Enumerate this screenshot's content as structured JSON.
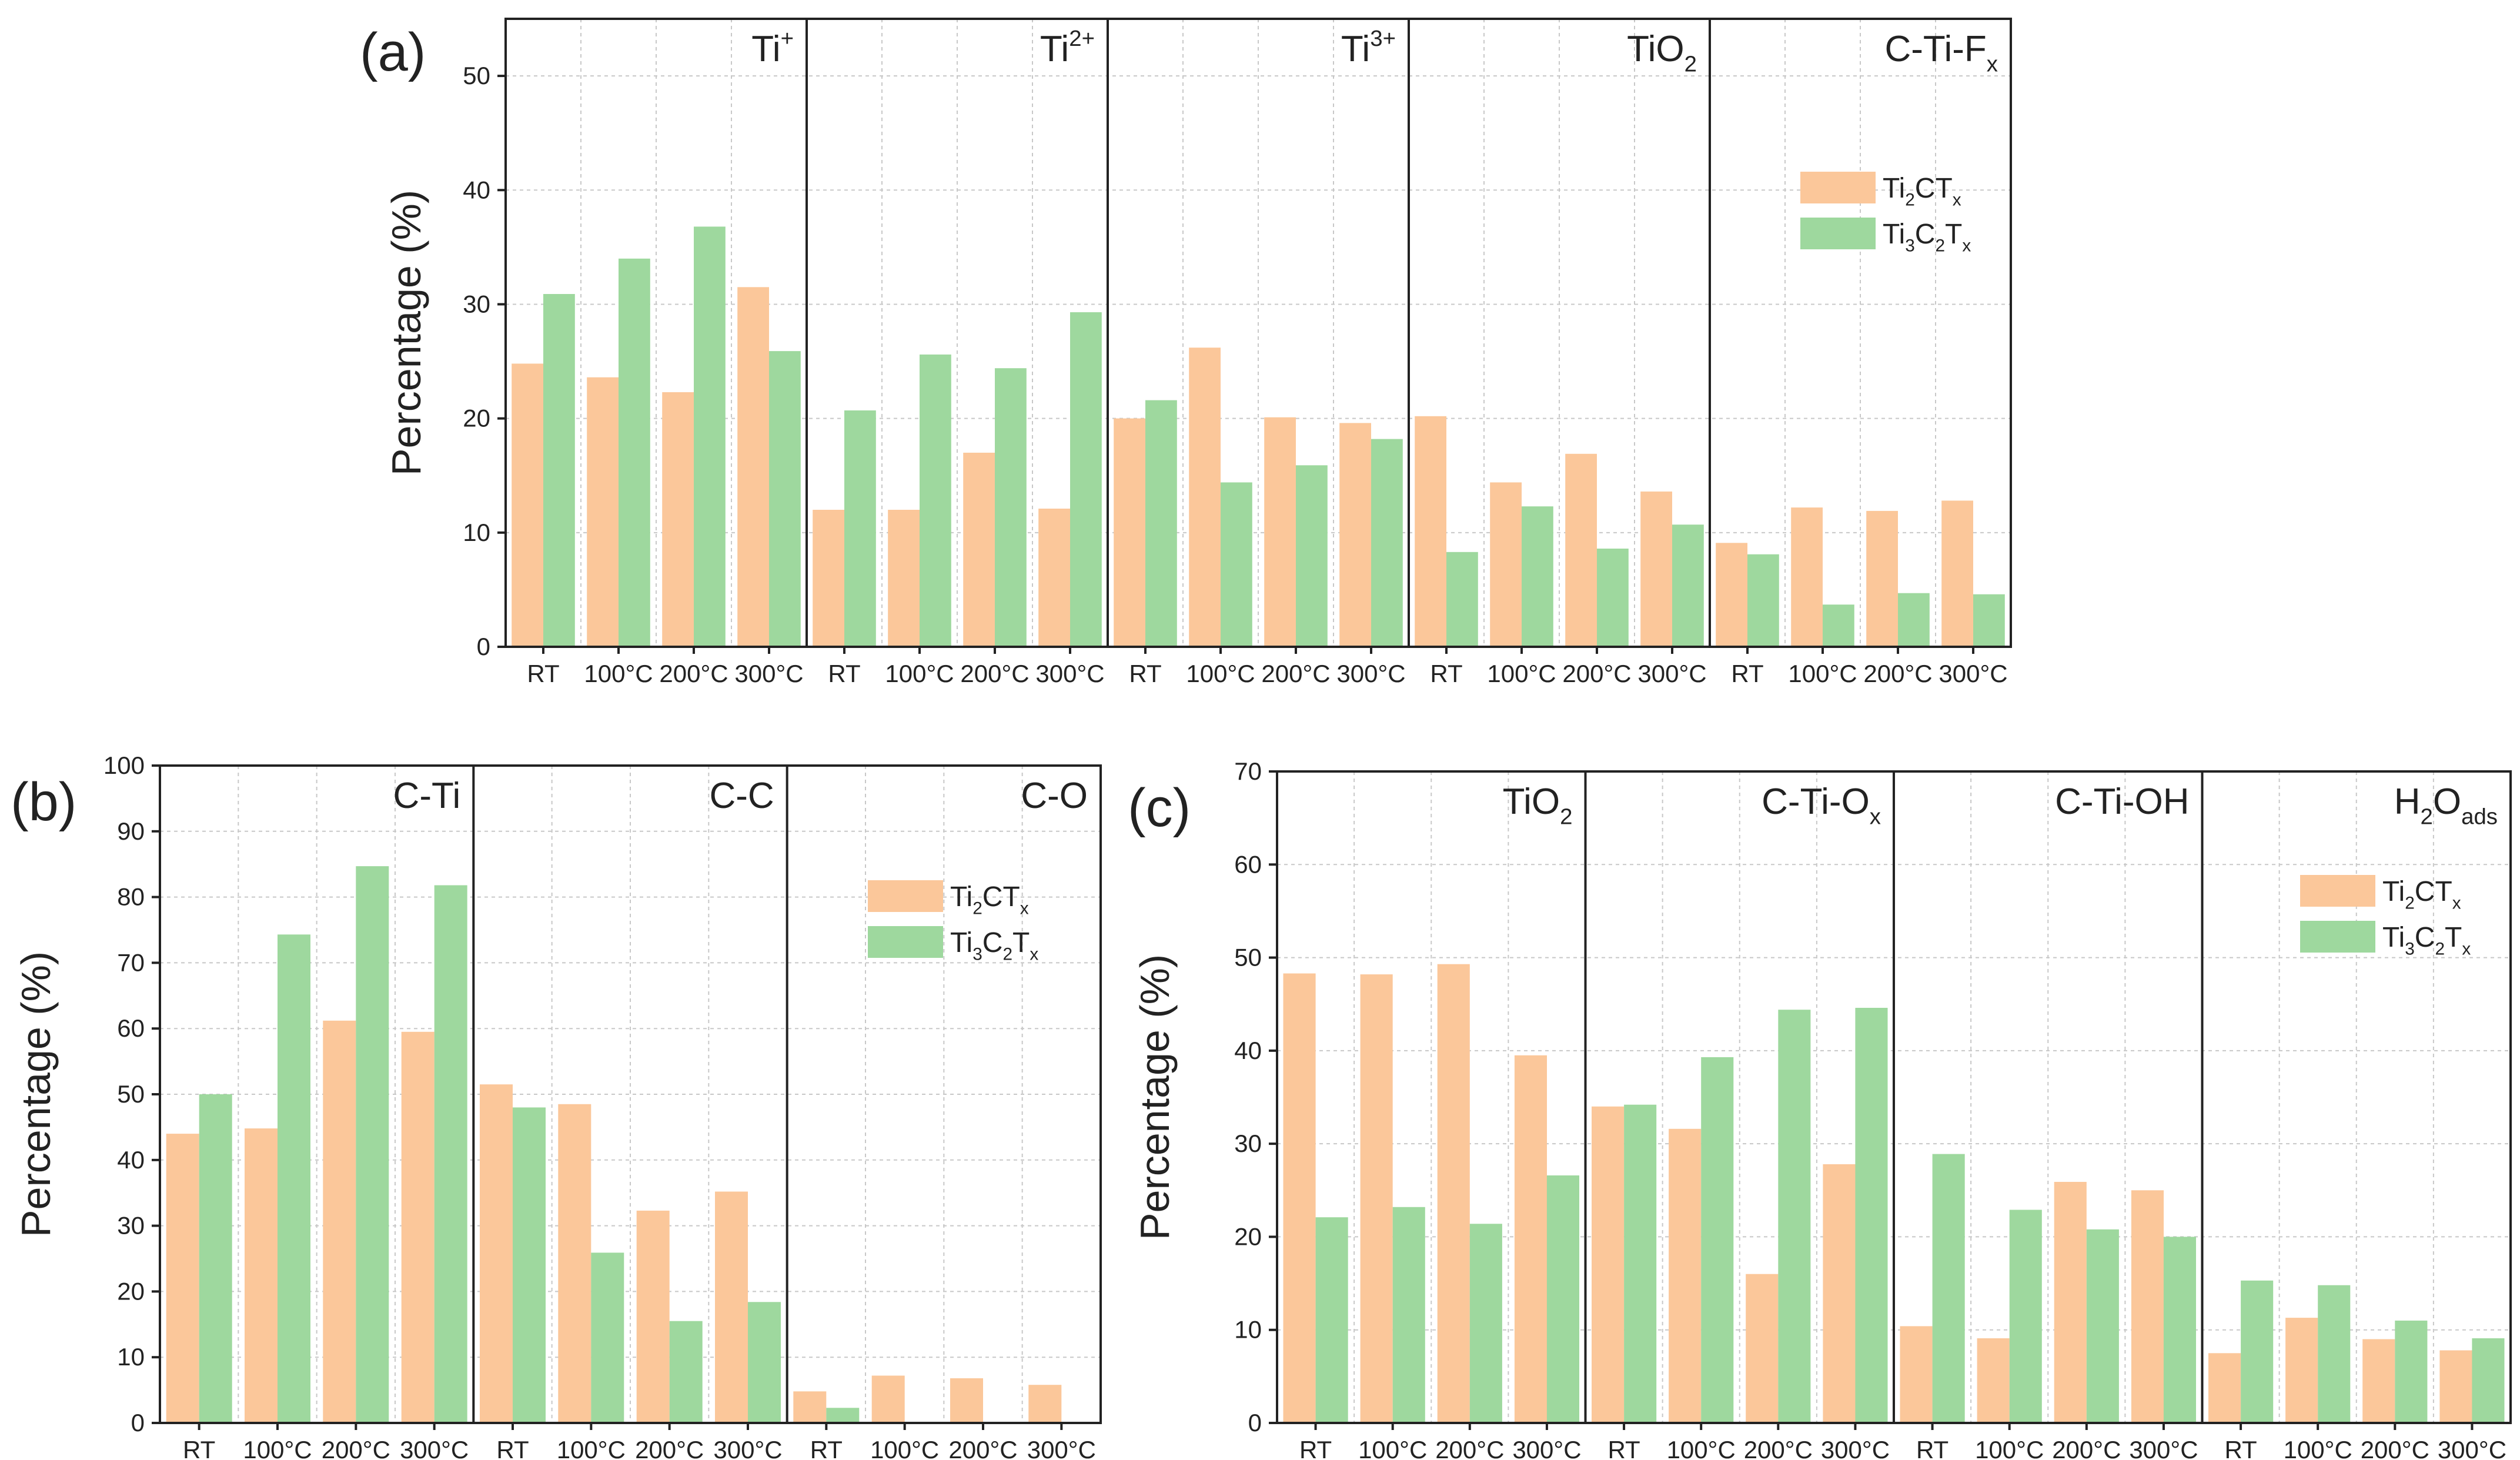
{
  "colors": {
    "ti2ctx": "#fbc79a",
    "ti3c2tx": "#9ed89e",
    "axis": "#222222",
    "grid": "#c8c8c8"
  },
  "legend": {
    "series1": "Ti2CTx",
    "series2": "Ti3C2Tx"
  },
  "chart_data": [
    {
      "type": "bar",
      "panel_label": "(a)",
      "ylabel": "Percentage (%)",
      "ylim": [
        0,
        55
      ],
      "yticks": [
        0,
        10,
        20,
        30,
        40,
        50
      ],
      "categories": [
        "RT",
        "100°C",
        "200°C",
        "300°C"
      ],
      "legend_position": "top-right (inside last group)",
      "groups": [
        {
          "label": "Ti+",
          "series": [
            {
              "name": "Ti2CTx",
              "values": [
                24.8,
                23.6,
                22.3,
                31.5
              ]
            },
            {
              "name": "Ti3C2Tx",
              "values": [
                30.9,
                34.0,
                36.8,
                25.9
              ]
            }
          ]
        },
        {
          "label": "Ti2+",
          "series": [
            {
              "name": "Ti2CTx",
              "values": [
                12.0,
                12.0,
                17.0,
                12.1
              ]
            },
            {
              "name": "Ti3C2Tx",
              "values": [
                20.7,
                25.6,
                24.4,
                29.3
              ]
            }
          ]
        },
        {
          "label": "Ti3+",
          "series": [
            {
              "name": "Ti2CTx",
              "values": [
                20.0,
                26.2,
                20.1,
                19.6
              ]
            },
            {
              "name": "Ti3C2Tx",
              "values": [
                21.6,
                14.4,
                15.9,
                18.2
              ]
            }
          ]
        },
        {
          "label": "TiO2",
          "series": [
            {
              "name": "Ti2CTx",
              "values": [
                20.2,
                14.4,
                16.9,
                13.6
              ]
            },
            {
              "name": "Ti3C2Tx",
              "values": [
                8.3,
                12.3,
                8.6,
                10.7
              ]
            }
          ]
        },
        {
          "label": "C-Ti-Fx",
          "series": [
            {
              "name": "Ti2CTx",
              "values": [
                9.1,
                12.2,
                11.9,
                12.8
              ]
            },
            {
              "name": "Ti3C2Tx",
              "values": [
                8.1,
                3.7,
                4.7,
                4.6
              ]
            }
          ]
        }
      ]
    },
    {
      "type": "bar",
      "panel_label": "(b)",
      "ylabel": "Percentage (%)",
      "ylim": [
        0,
        100
      ],
      "yticks": [
        0,
        10,
        20,
        30,
        40,
        50,
        60,
        70,
        80,
        90,
        100
      ],
      "categories": [
        "RT",
        "100°C",
        "200°C",
        "300°C"
      ],
      "legend_position": "top-right (inside last group)",
      "groups": [
        {
          "label": "C-Ti",
          "series": [
            {
              "name": "Ti2CTx",
              "values": [
                44.0,
                44.8,
                61.2,
                59.5
              ]
            },
            {
              "name": "Ti3C2Tx",
              "values": [
                50.0,
                74.3,
                84.7,
                81.8
              ]
            }
          ]
        },
        {
          "label": "C-C",
          "series": [
            {
              "name": "Ti2CTx",
              "values": [
                51.5,
                48.5,
                32.3,
                35.2
              ]
            },
            {
              "name": "Ti3C2Tx",
              "values": [
                48.0,
                25.9,
                15.5,
                18.4
              ]
            }
          ]
        },
        {
          "label": "C-O",
          "series": [
            {
              "name": "Ti2CTx",
              "values": [
                4.8,
                7.2,
                6.8,
                5.8
              ]
            },
            {
              "name": "Ti3C2Tx",
              "values": [
                2.3,
                0,
                0,
                0
              ]
            }
          ]
        }
      ]
    },
    {
      "type": "bar",
      "panel_label": "(c)",
      "ylabel": "Percentage (%)",
      "ylim": [
        0,
        70
      ],
      "yticks": [
        0,
        10,
        20,
        30,
        40,
        50,
        60,
        70
      ],
      "categories": [
        "RT",
        "100°C",
        "200°C",
        "300°C"
      ],
      "legend_position": "top-right (inside last group)",
      "groups": [
        {
          "label": "TiO2",
          "series": [
            {
              "name": "Ti2CTx",
              "values": [
                48.3,
                48.2,
                49.3,
                39.5
              ]
            },
            {
              "name": "Ti3C2Tx",
              "values": [
                22.1,
                23.2,
                21.4,
                26.6
              ]
            }
          ]
        },
        {
          "label": "C-Ti-Ox",
          "series": [
            {
              "name": "Ti2CTx",
              "values": [
                34.0,
                31.6,
                16.0,
                27.8
              ]
            },
            {
              "name": "Ti3C2Tx",
              "values": [
                34.2,
                39.3,
                44.4,
                44.6
              ]
            }
          ]
        },
        {
          "label": "C-Ti-OH",
          "series": [
            {
              "name": "Ti2CTx",
              "values": [
                10.4,
                9.1,
                25.9,
                25.0
              ]
            },
            {
              "name": "Ti3C2Tx",
              "values": [
                28.9,
                22.9,
                20.8,
                20.0
              ]
            }
          ]
        },
        {
          "label": "H2Oads",
          "series": [
            {
              "name": "Ti2CTx",
              "values": [
                7.5,
                11.3,
                9.0,
                7.8
              ]
            },
            {
              "name": "Ti3C2Tx",
              "values": [
                15.3,
                14.8,
                11.0,
                9.1
              ]
            }
          ]
        }
      ]
    }
  ]
}
